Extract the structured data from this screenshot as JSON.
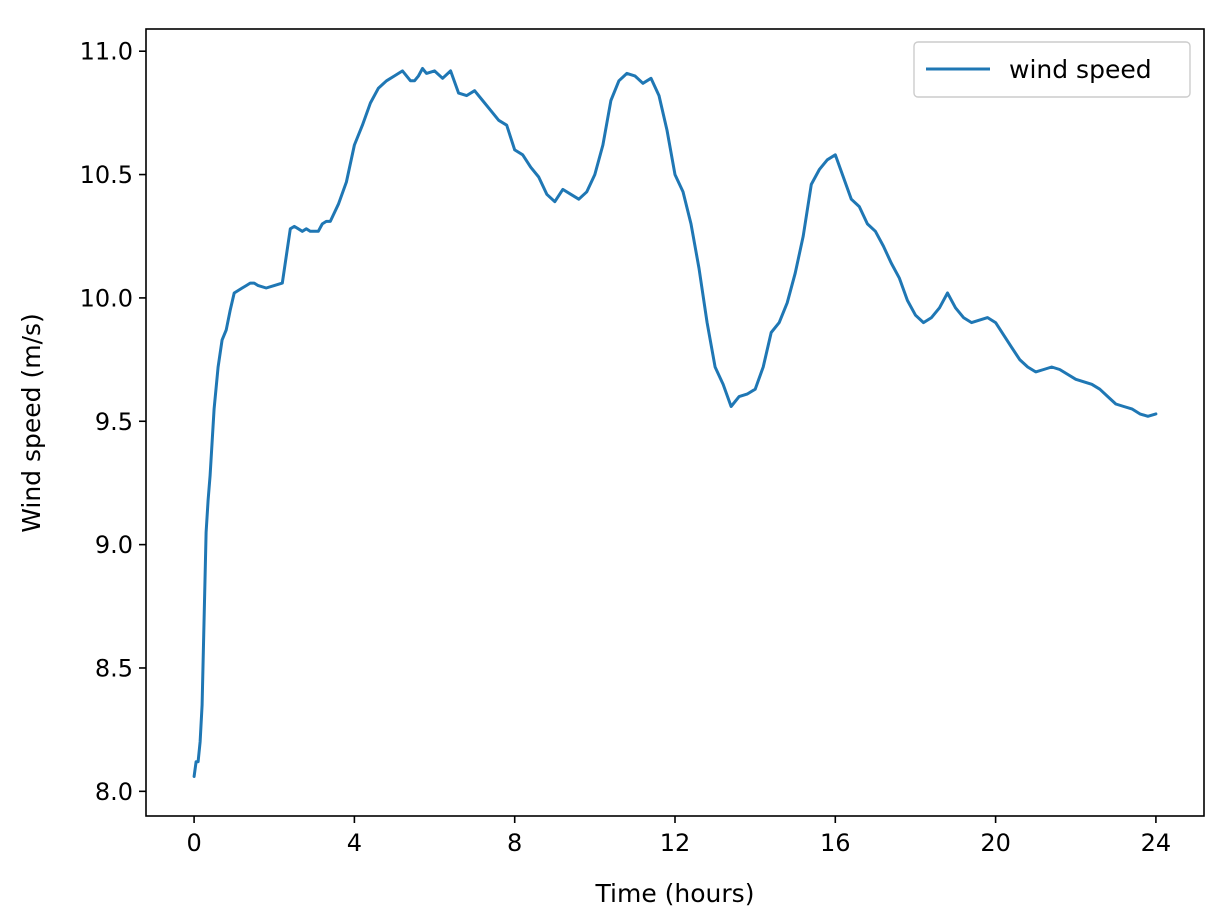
{
  "chart_data": {
    "type": "line",
    "title": "",
    "xlabel": "Time (hours)",
    "ylabel": "Wind speed (m/s)",
    "xlim": [
      -1.2,
      25.2
    ],
    "ylim": [
      7.9,
      11.09
    ],
    "xticks": [
      0,
      4,
      8,
      12,
      16,
      20,
      24
    ],
    "xtick_labels": [
      "0",
      "4",
      "8",
      "12",
      "16",
      "20",
      "24"
    ],
    "yticks": [
      8.0,
      8.5,
      9.0,
      9.5,
      10.0,
      10.5,
      11.0
    ],
    "ytick_labels": [
      "8.0",
      "8.5",
      "9.0",
      "9.5",
      "10.0",
      "10.5",
      "11.0"
    ],
    "grid": false,
    "legend_position": "top-right",
    "series": [
      {
        "name": "wind speed",
        "color": "#1f77b4",
        "x": [
          0,
          0.05,
          0.1,
          0.15,
          0.2,
          0.25,
          0.3,
          0.35,
          0.4,
          0.5,
          0.6,
          0.7,
          0.8,
          0.9,
          1.0,
          1.1,
          1.2,
          1.3,
          1.4,
          1.5,
          1.6,
          1.8,
          2.0,
          2.2,
          2.4,
          2.5,
          2.6,
          2.7,
          2.8,
          2.9,
          3.0,
          3.1,
          3.2,
          3.3,
          3.4,
          3.6,
          3.8,
          4.0,
          4.2,
          4.4,
          4.6,
          4.8,
          5.0,
          5.2,
          5.4,
          5.5,
          5.6,
          5.7,
          5.8,
          6.0,
          6.2,
          6.4,
          6.6,
          6.8,
          7.0,
          7.2,
          7.4,
          7.6,
          7.8,
          8.0,
          8.2,
          8.4,
          8.6,
          8.8,
          9.0,
          9.2,
          9.4,
          9.6,
          9.8,
          10.0,
          10.2,
          10.4,
          10.6,
          10.8,
          11.0,
          11.2,
          11.4,
          11.6,
          11.8,
          12.0,
          12.2,
          12.4,
          12.6,
          12.8,
          13.0,
          13.2,
          13.4,
          13.6,
          13.8,
          14.0,
          14.2,
          14.4,
          14.6,
          14.8,
          15.0,
          15.2,
          15.4,
          15.6,
          15.8,
          16.0,
          16.2,
          16.4,
          16.6,
          16.8,
          17.0,
          17.2,
          17.4,
          17.6,
          17.8,
          18.0,
          18.2,
          18.4,
          18.6,
          18.8,
          19.0,
          19.2,
          19.4,
          19.6,
          19.8,
          20.0,
          20.2,
          20.4,
          20.6,
          20.8,
          21.0,
          21.2,
          21.4,
          21.6,
          21.8,
          22.0,
          22.2,
          22.4,
          22.6,
          22.8,
          23.0,
          23.2,
          23.4,
          23.6,
          23.8,
          24.0
        ],
        "y": [
          8.06,
          8.12,
          8.12,
          8.2,
          8.35,
          8.7,
          9.05,
          9.18,
          9.28,
          9.55,
          9.72,
          9.83,
          9.87,
          9.95,
          10.02,
          10.03,
          10.04,
          10.05,
          10.06,
          10.06,
          10.05,
          10.04,
          10.05,
          10.06,
          10.28,
          10.29,
          10.28,
          10.27,
          10.28,
          10.27,
          10.27,
          10.27,
          10.3,
          10.31,
          10.31,
          10.38,
          10.47,
          10.62,
          10.7,
          10.79,
          10.85,
          10.88,
          10.9,
          10.92,
          10.88,
          10.88,
          10.9,
          10.93,
          10.91,
          10.92,
          10.89,
          10.92,
          10.83,
          10.82,
          10.84,
          10.8,
          10.76,
          10.72,
          10.7,
          10.6,
          10.58,
          10.53,
          10.49,
          10.42,
          10.39,
          10.44,
          10.42,
          10.4,
          10.43,
          10.5,
          10.62,
          10.8,
          10.88,
          10.91,
          10.9,
          10.87,
          10.89,
          10.82,
          10.68,
          10.5,
          10.43,
          10.3,
          10.12,
          9.9,
          9.72,
          9.65,
          9.56,
          9.6,
          9.61,
          9.63,
          9.72,
          9.86,
          9.9,
          9.98,
          10.1,
          10.25,
          10.46,
          10.52,
          10.56,
          10.58,
          10.49,
          10.4,
          10.37,
          10.3,
          10.27,
          10.21,
          10.14,
          10.08,
          9.99,
          9.93,
          9.9,
          9.92,
          9.96,
          10.02,
          9.96,
          9.92,
          9.9,
          9.91,
          9.92,
          9.9,
          9.85,
          9.8,
          9.75,
          9.72,
          9.7,
          9.71,
          9.72,
          9.71,
          9.69,
          9.67,
          9.66,
          9.65,
          9.63,
          9.6,
          9.57,
          9.56,
          9.55,
          9.53,
          9.52,
          9.53
        ]
      }
    ]
  }
}
